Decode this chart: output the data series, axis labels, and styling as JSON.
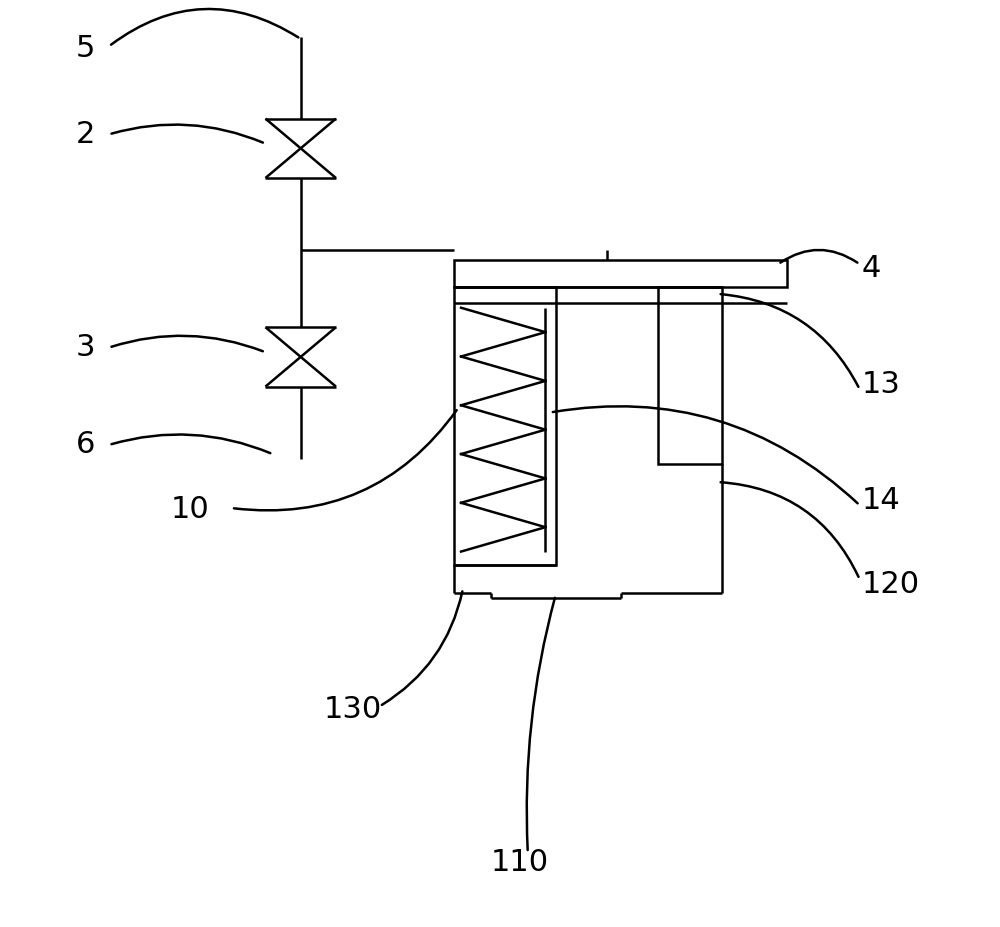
{
  "bg_color": "#ffffff",
  "line_color": "#000000",
  "line_width": 1.8,
  "fig_width": 10.0,
  "fig_height": 9.27,
  "label_fontsize": 22
}
